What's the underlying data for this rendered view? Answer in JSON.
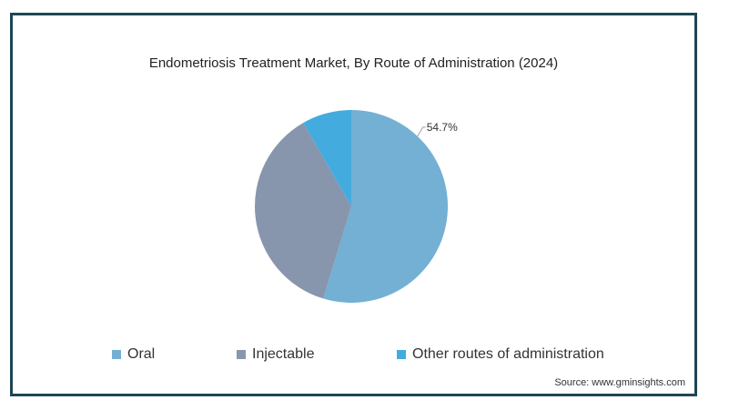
{
  "chart_data": {
    "type": "pie",
    "title": "Endometriosis Treatment Market, By Route of Administration (2024)",
    "slices": [
      {
        "name": "Oral",
        "value": 54.7,
        "color": "#73b0d3",
        "label": "54.7%"
      },
      {
        "name": "Injectable",
        "value": 37.0,
        "color": "#8796ad",
        "label": ""
      },
      {
        "name": "Other routes of administration",
        "value": 8.3,
        "color": "#44abdf",
        "label": ""
      }
    ],
    "legend_position": "bottom"
  },
  "footer": {
    "source": "Source: www.gminsights.com"
  }
}
